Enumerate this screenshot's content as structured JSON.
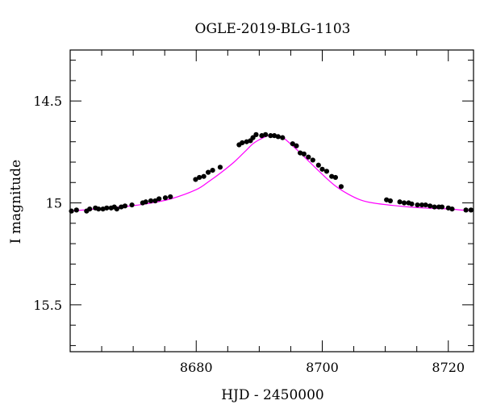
{
  "chart_data": {
    "type": "scatter",
    "title": "OGLE-2019-BLG-1103",
    "xlabel": "HJD - 2450000",
    "ylabel": "I magnitude",
    "xlim": [
      8660,
      8724
    ],
    "ylim": [
      15.73,
      14.25
    ],
    "y_inverted": true,
    "x_major_ticks": [
      8680,
      8700,
      8720
    ],
    "x_tick_labels": [
      "8680",
      "8700",
      "8720"
    ],
    "x_minor_step": 5,
    "y_major_ticks": [
      14.5,
      15,
      15.5
    ],
    "y_tick_labels": [
      "14.5",
      "15",
      "15.5"
    ],
    "y_minor_step": 0.1,
    "grid": false,
    "legend": "none",
    "colors": {
      "data": "#000000",
      "model": "#ff00ff"
    },
    "model": {
      "name": "",
      "x": [
        8660,
        8664,
        8668,
        8672,
        8676,
        8680,
        8682,
        8684,
        8686,
        8688,
        8689,
        8690,
        8691,
        8692,
        8693,
        8694,
        8696,
        8698,
        8700,
        8702,
        8704,
        8706,
        8708,
        8712,
        8716,
        8720,
        8724
      ],
      "y": [
        15.04,
        15.03,
        15.02,
        15.005,
        14.98,
        14.935,
        14.895,
        14.85,
        14.8,
        14.74,
        14.71,
        14.69,
        14.675,
        14.665,
        14.67,
        14.685,
        14.74,
        14.8,
        14.86,
        14.915,
        14.955,
        14.985,
        15.0,
        15.015,
        15.025,
        15.03,
        15.04
      ]
    },
    "series": [
      {
        "name": "",
        "x": [
          8660.2,
          8661.0,
          8662.6,
          8663.1,
          8664.0,
          8664.5,
          8665.2,
          8665.8,
          8666.5,
          8667.0,
          8667.4,
          8668.1,
          8668.7,
          8669.8,
          8671.5,
          8672.0,
          8672.8,
          8673.5,
          8674.1,
          8675.1,
          8675.9,
          8679.9,
          8680.5,
          8681.2,
          8681.9,
          8682.6,
          8683.8,
          8686.8,
          8687.3,
          8688.0,
          8688.6,
          8689.0,
          8689.5,
          8690.4,
          8691.0,
          8691.8,
          8692.4,
          8693.0,
          8693.7,
          8695.3,
          8695.9,
          8696.5,
          8697.1,
          8697.8,
          8698.5,
          8699.4,
          8700.0,
          8700.7,
          8701.5,
          8702.1,
          8703.0,
          8710.2,
          8710.8,
          8712.3,
          8713.0,
          8713.7,
          8714.2,
          8715.1,
          8715.8,
          8716.4,
          8717.1,
          8717.8,
          8718.5,
          8719.0,
          8720.0,
          8720.6,
          8722.8,
          8723.6
        ],
        "y": [
          15.04,
          15.035,
          15.04,
          15.03,
          15.025,
          15.03,
          15.03,
          15.025,
          15.025,
          15.02,
          15.03,
          15.02,
          15.015,
          15.01,
          15.0,
          14.995,
          14.99,
          14.99,
          14.98,
          14.975,
          14.97,
          14.885,
          14.875,
          14.87,
          14.85,
          14.84,
          14.825,
          14.715,
          14.705,
          14.7,
          14.695,
          14.68,
          14.665,
          14.67,
          14.665,
          14.67,
          14.67,
          14.675,
          14.68,
          14.71,
          14.72,
          14.755,
          14.76,
          14.775,
          14.79,
          14.815,
          14.835,
          14.845,
          14.87,
          14.875,
          14.92,
          14.985,
          14.99,
          14.995,
          15.0,
          15.0,
          15.005,
          15.01,
          15.01,
          15.01,
          15.015,
          15.02,
          15.02,
          15.02,
          15.025,
          15.03,
          15.035,
          15.035
        ]
      }
    ]
  }
}
